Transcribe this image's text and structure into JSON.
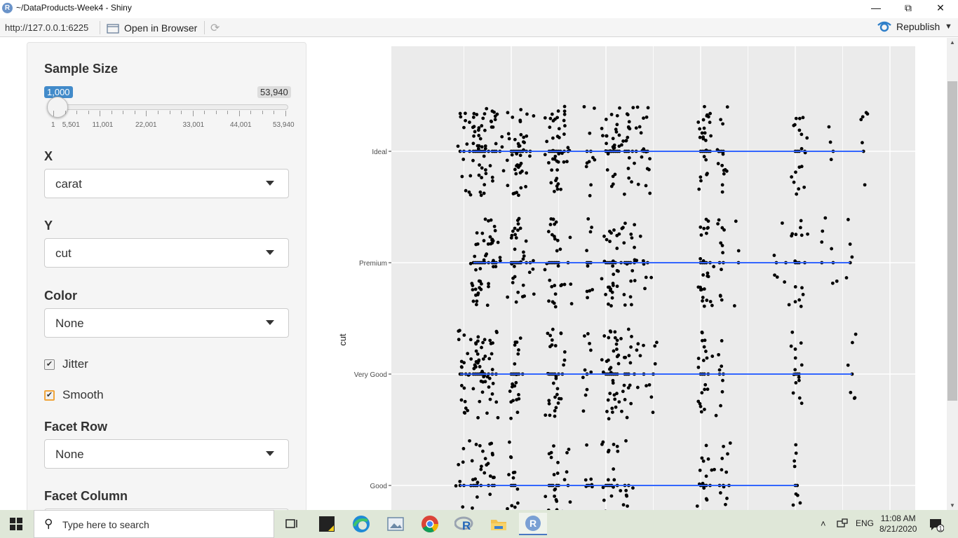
{
  "window": {
    "title": "~/DataProducts-Week4 - Shiny",
    "app_icon_letter": "R"
  },
  "toolbar": {
    "url": "http://127.0.0.1:6225",
    "open_in_browser": "Open in Browser",
    "republish": "Republish"
  },
  "sidebar": {
    "sample_size": {
      "label": "Sample Size",
      "value": "1,000",
      "max": "53,940",
      "value_fraction": 0.0,
      "ticks": [
        "1",
        "5,501",
        "11,001",
        "22,001",
        "33,001",
        "44,001",
        "53,940"
      ]
    },
    "x": {
      "label": "X",
      "selected": "carat"
    },
    "y": {
      "label": "Y",
      "selected": "cut"
    },
    "color": {
      "label": "Color",
      "selected": "None"
    },
    "jitter": {
      "label": "Jitter",
      "checked": true
    },
    "smooth": {
      "label": "Smooth",
      "checked": true
    },
    "facet_row": {
      "label": "Facet Row",
      "selected": "None"
    },
    "facet_column": {
      "label": "Facet Column"
    }
  },
  "chart_data": {
    "type": "scatter",
    "title": "",
    "xlabel": "",
    "ylabel": "cut",
    "categories": [
      "Ideal",
      "Premium",
      "Very Good",
      "Good"
    ],
    "jitter": true,
    "smooth": true,
    "point_color": "#000000",
    "smooth_color": "#3366ff",
    "panel_color": "#ebebeb",
    "grid": true,
    "series": [
      {
        "category": "Ideal",
        "x_min": 0.23,
        "x_max": 2.36,
        "points": [
          0.23,
          0.25,
          0.28,
          0.3,
          0.31,
          0.32,
          0.33,
          0.34,
          0.35,
          0.36,
          0.38,
          0.4,
          0.41,
          0.42,
          0.44,
          0.5,
          0.51,
          0.52,
          0.53,
          0.54,
          0.55,
          0.56,
          0.58,
          0.6,
          0.7,
          0.71,
          0.72,
          0.73,
          0.74,
          0.75,
          0.76,
          0.78,
          0.8,
          0.9,
          0.92,
          1.0,
          1.01,
          1.02,
          1.03,
          1.04,
          1.05,
          1.06,
          1.07,
          1.1,
          1.11,
          1.12,
          1.14,
          1.16,
          1.2,
          1.21,
          1.22,
          1.5,
          1.51,
          1.52,
          1.53,
          1.54,
          1.55,
          1.6,
          1.61,
          1.62,
          2.0,
          2.01,
          2.02,
          2.05,
          2.2,
          2.36
        ]
      },
      {
        "category": "Premium",
        "x_min": 0.3,
        "x_max": 2.29,
        "points": [
          0.3,
          0.31,
          0.32,
          0.33,
          0.34,
          0.35,
          0.36,
          0.38,
          0.4,
          0.41,
          0.42,
          0.5,
          0.51,
          0.52,
          0.53,
          0.54,
          0.55,
          0.58,
          0.6,
          0.7,
          0.71,
          0.72,
          0.73,
          0.74,
          0.75,
          0.8,
          0.9,
          0.91,
          0.92,
          1.0,
          1.01,
          1.02,
          1.03,
          1.04,
          1.05,
          1.08,
          1.1,
          1.11,
          1.12,
          1.13,
          1.15,
          1.2,
          1.22,
          1.5,
          1.51,
          1.52,
          1.53,
          1.55,
          1.6,
          1.62,
          1.7,
          1.9,
          1.95,
          2.0,
          2.01,
          2.02,
          2.05,
          2.14,
          2.2,
          2.29
        ]
      },
      {
        "category": "Very Good",
        "x_min": 0.23,
        "x_max": 2.3,
        "points": [
          0.23,
          0.24,
          0.26,
          0.28,
          0.3,
          0.31,
          0.32,
          0.33,
          0.34,
          0.35,
          0.36,
          0.38,
          0.4,
          0.42,
          0.5,
          0.51,
          0.52,
          0.53,
          0.54,
          0.56,
          0.7,
          0.71,
          0.72,
          0.73,
          0.75,
          0.77,
          0.9,
          0.9,
          1.0,
          1.01,
          1.02,
          1.03,
          1.04,
          1.05,
          1.06,
          1.1,
          1.11,
          1.12,
          1.15,
          1.2,
          1.25,
          1.5,
          1.51,
          1.52,
          1.54,
          1.6,
          1.62,
          2.0,
          2.01,
          2.02,
          2.3
        ]
      },
      {
        "category": "Good",
        "x_min": 0.23,
        "x_max": 2.01,
        "points": [
          0.23,
          0.25,
          0.3,
          0.31,
          0.32,
          0.34,
          0.38,
          0.4,
          0.41,
          0.5,
          0.51,
          0.52,
          0.7,
          0.71,
          0.72,
          0.74,
          0.75,
          0.8,
          0.9,
          0.91,
          1.0,
          1.01,
          1.02,
          1.03,
          1.06,
          1.1,
          1.12,
          1.5,
          1.51,
          1.52,
          1.53,
          1.55,
          1.6,
          1.62,
          1.65,
          2.0,
          2.01
        ]
      }
    ]
  },
  "taskbar": {
    "search_placeholder": "Type here to search",
    "language": "ENG",
    "time": "11:08 AM",
    "date": "8/21/2020",
    "notifications": "1"
  }
}
